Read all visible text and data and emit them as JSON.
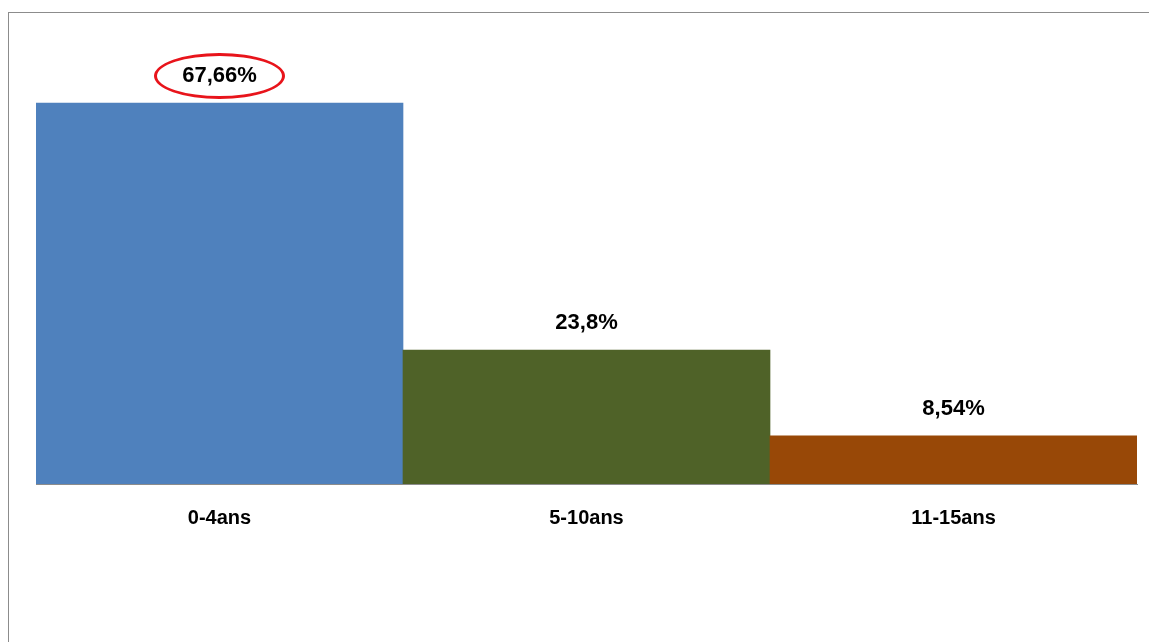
{
  "chart_data": {
    "type": "bar",
    "categories": [
      "0-4ans",
      "5-10ans",
      "11-15ans"
    ],
    "values": [
      67.66,
      23.8,
      8.54
    ],
    "colors": [
      "#4f81bd",
      "#4f6228",
      "#984807"
    ],
    "value_labels": [
      "67,66%",
      "23,8%",
      "8,54%"
    ],
    "grid": false,
    "legend": false,
    "tick_labels": "x"
  }
}
